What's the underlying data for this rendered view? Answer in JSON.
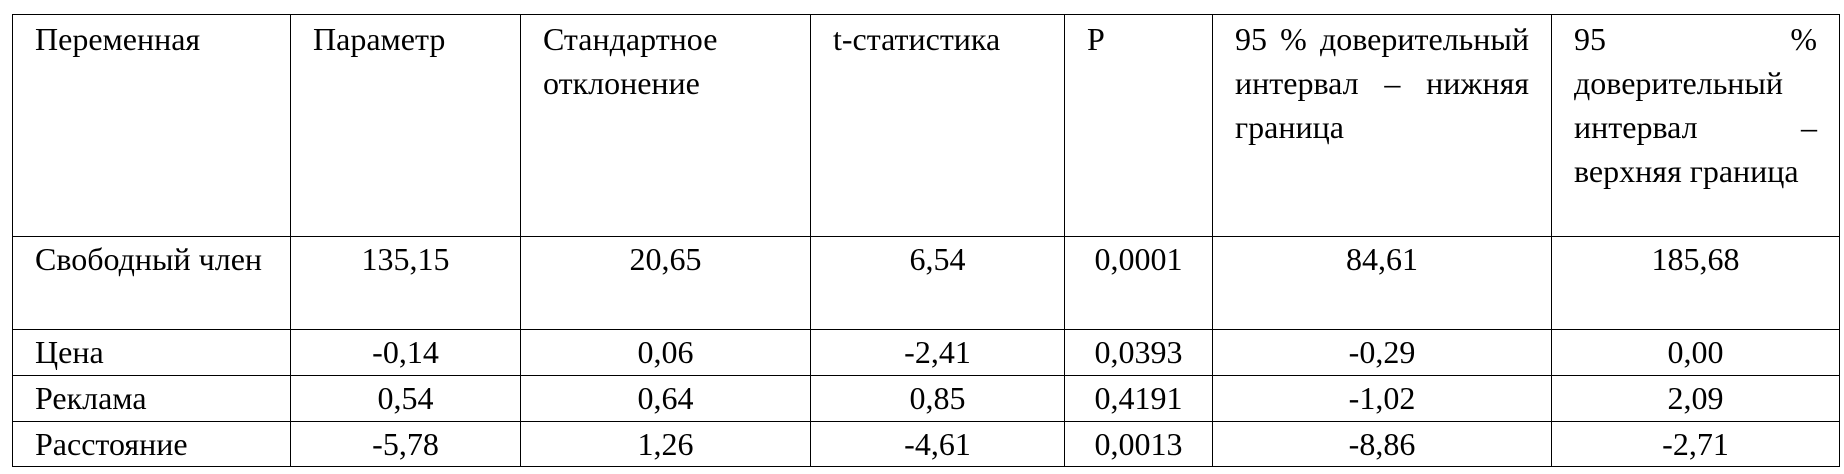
{
  "table": {
    "header": [
      "Переменная",
      "Параметр",
      "Стандартное отклонение",
      "t-статистика",
      "P",
      "95 % доверительный интервал – нижняя граница",
      "95 % доверительный интервал – верхняя граница"
    ],
    "rows": [
      [
        "Свободный член",
        "135,15",
        "20,65",
        "6,54",
        "0,0001",
        "84,61",
        "185,68"
      ],
      [
        "Цена",
        "-0,14",
        "0,06",
        "-2,41",
        "0,0393",
        "-0,29",
        "0,00"
      ],
      [
        "Реклама",
        "0,54",
        "0,64",
        "0,85",
        "0,4191",
        "-1,02",
        "2,09"
      ],
      [
        "Расстояние",
        "-5,78",
        "1,26",
        "-4,61",
        "0,0013",
        "-8,86",
        "-2,71"
      ]
    ]
  }
}
